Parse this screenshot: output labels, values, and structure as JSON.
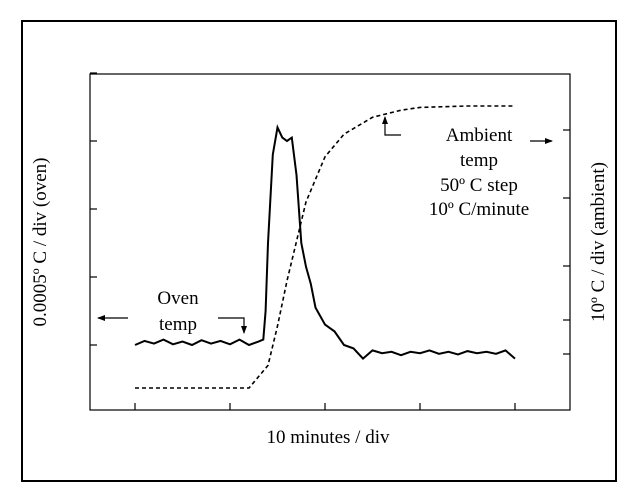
{
  "chart_data": {
    "type": "line",
    "xlabel": "10 minutes / div",
    "ylabel_left": "0.0005º C / div (oven)",
    "ylabel_right": "10º C / div (ambient)",
    "xlim": [
      -1,
      8
    ],
    "x_ticks": [
      0,
      2,
      4,
      6,
      8
    ],
    "left_ticks_count": 5,
    "right_ticks_count": 5,
    "grid": false,
    "series": [
      {
        "name": "Oven temp",
        "axis": "left",
        "style": "solid",
        "x": [
          0,
          0.2,
          0.4,
          0.6,
          0.8,
          1.0,
          1.2,
          1.4,
          1.6,
          1.8,
          2.0,
          2.2,
          2.4,
          2.6,
          2.7,
          2.75,
          2.8,
          2.9,
          3.0,
          3.1,
          3.2,
          3.3,
          3.4,
          3.5,
          3.6,
          3.7,
          3.8,
          4.0,
          4.2,
          4.4,
          4.6,
          4.8,
          5.0,
          5.2,
          5.4,
          5.6,
          5.8,
          6.0,
          6.2,
          6.4,
          6.6,
          6.8,
          7.0,
          7.2,
          7.4,
          7.6,
          7.8,
          8.0
        ],
        "y": [
          0.0,
          0.06,
          0.02,
          0.08,
          0.01,
          0.05,
          0.0,
          0.07,
          0.02,
          0.06,
          0.01,
          0.08,
          0.0,
          0.05,
          0.08,
          0.5,
          1.5,
          2.8,
          3.2,
          3.05,
          3.0,
          3.05,
          2.5,
          1.5,
          1.15,
          0.9,
          0.55,
          0.3,
          0.2,
          0.0,
          -0.05,
          -0.2,
          -0.08,
          -0.12,
          -0.1,
          -0.15,
          -0.1,
          -0.12,
          -0.08,
          -0.13,
          -0.1,
          -0.14,
          -0.09,
          -0.12,
          -0.1,
          -0.13,
          -0.08,
          -0.2
        ]
      },
      {
        "name": "Ambient temp",
        "axis": "right",
        "style": "dashed",
        "x": [
          0,
          1,
          2,
          2.4,
          2.8,
          3.0,
          3.2,
          3.6,
          4.0,
          4.4,
          5.0,
          5.6,
          6.0,
          7.0,
          8.0
        ],
        "y": [
          0.0,
          0.0,
          0.0,
          0.0,
          0.08,
          0.22,
          0.38,
          0.66,
          0.82,
          0.9,
          0.96,
          0.985,
          0.995,
          1.0,
          1.0
        ]
      }
    ],
    "annotations": {
      "oven_label": [
        "Oven",
        "temp"
      ],
      "ambient_label": [
        "Ambient",
        "temp",
        "50º C step",
        "10º C/minute"
      ]
    }
  }
}
